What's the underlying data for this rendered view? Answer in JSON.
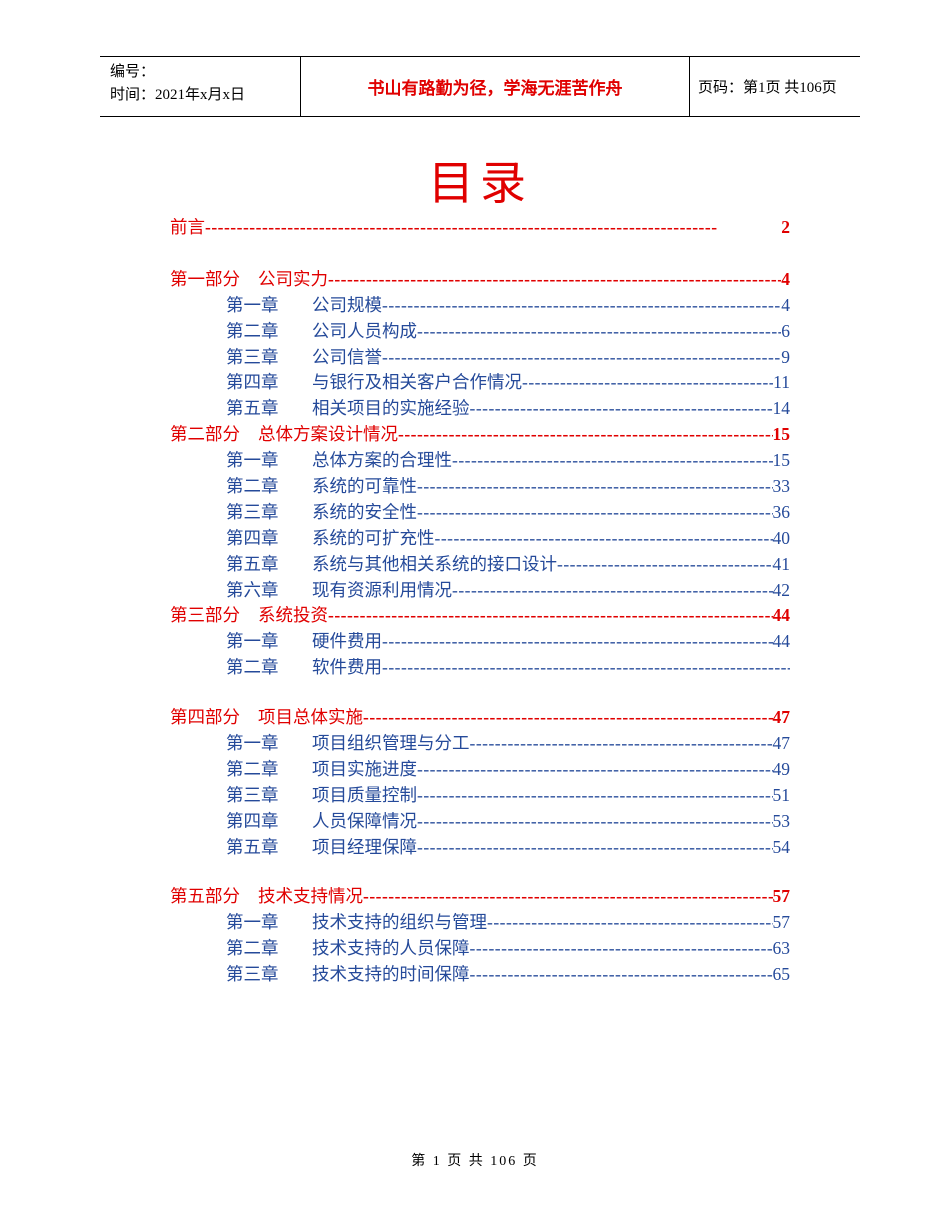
{
  "header": {
    "serial_label": "编号：",
    "time_label": "时间：",
    "time_value": "2021年x月x日",
    "motto": "书山有路勤为径，学海无涯苦作舟",
    "page_label": "页码：",
    "page_value": "第1页 共106页"
  },
  "title": "目录",
  "preface": {
    "label": "前言",
    "page": "2"
  },
  "sections": [
    {
      "label": "第一部分",
      "title": "公司实力",
      "page": "4",
      "chapters": [
        {
          "label": "第一章",
          "title": "公司规模",
          "page": "4"
        },
        {
          "label": "第二章",
          "title": "公司人员构成",
          "page": "6"
        },
        {
          "label": "第三章",
          "title": "公司信誉",
          "page": "9"
        },
        {
          "label": "第四章",
          "title": "与银行及相关客户合作情况",
          "page": "11"
        },
        {
          "label": "第五章",
          "title": "相关项目的实施经验",
          "page": "14"
        }
      ],
      "gap_after": false
    },
    {
      "label": "第二部分",
      "title": "总体方案设计情况",
      "page": "15",
      "chapters": [
        {
          "label": "第一章",
          "title": "总体方案的合理性",
          "page": "15"
        },
        {
          "label": "第二章",
          "title": "系统的可靠性",
          "page": "33"
        },
        {
          "label": "第三章",
          "title": "系统的安全性",
          "page": "36"
        },
        {
          "label": "第四章",
          "title": "系统的可扩充性",
          "page": "40"
        },
        {
          "label": "第五章",
          "title": "系统与其他相关系统的接口设计",
          "page": "41"
        },
        {
          "label": "第六章",
          "title": "现有资源利用情况",
          "page": "42"
        }
      ],
      "gap_after": false
    },
    {
      "label": "第三部分",
      "title": "系统投资",
      "page": "44",
      "chapters": [
        {
          "label": "第一章",
          "title": "硬件费用",
          "page": "44"
        },
        {
          "label": "第二章",
          "title": "软件费用",
          "page": ""
        }
      ],
      "gap_after": true
    },
    {
      "label": "第四部分",
      "title": "项目总体实施",
      "page": "47",
      "chapters": [
        {
          "label": "第一章",
          "title": "项目组织管理与分工",
          "page": "47"
        },
        {
          "label": "第二章",
          "title": "项目实施进度",
          "page": "49"
        },
        {
          "label": "第三章",
          "title": "项目质量控制",
          "page": "51"
        },
        {
          "label": "第四章",
          "title": "人员保障情况",
          "page": "53"
        },
        {
          "label": "第五章",
          "title": "项目经理保障",
          "page": "54"
        }
      ],
      "gap_after": true
    },
    {
      "label": "第五部分",
      "title": "技术支持情况",
      "page": "57",
      "chapters": [
        {
          "label": "第一章",
          "title": "技术支持的组织与管理",
          "page": "57"
        },
        {
          "label": "第二章",
          "title": "技术支持的人员保障",
          "page": "63"
        },
        {
          "label": "第三章",
          "title": "技术支持的时间保障",
          "page": "65"
        }
      ],
      "gap_after": false
    }
  ],
  "footer": "第 1 页 共 106 页",
  "colors": {
    "red": "#e00000",
    "blue": "#254a9a",
    "black": "#000000",
    "background": "#ffffff"
  },
  "typography": {
    "title_fontsize": 46,
    "body_fontsize": 17.5,
    "header_fontsize": 15,
    "footer_fontsize": 14
  }
}
